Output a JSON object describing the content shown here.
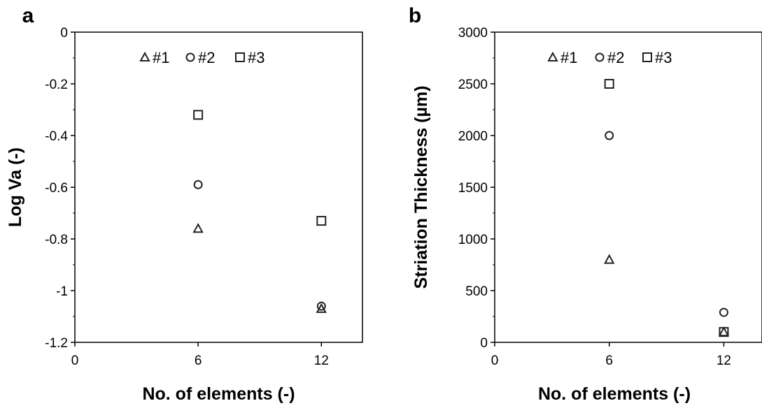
{
  "chart_data": [
    {
      "panel_label": "a",
      "type": "scatter",
      "xlabel": "No. of elements (-)",
      "ylabel": "Log Va (-)",
      "xlim": [
        0,
        14
      ],
      "ylim": [
        -1.2,
        0
      ],
      "x_ticks": [
        0,
        6,
        12
      ],
      "y_ticks": [
        0,
        -0.2,
        -0.4,
        -0.6,
        -0.8,
        -1,
        -1.2
      ],
      "grid": false,
      "legend_position": "top",
      "series": [
        {
          "name": "#1",
          "marker": "triangle",
          "x": [
            6,
            12
          ],
          "y": [
            -0.76,
            -1.07
          ]
        },
        {
          "name": "#2",
          "marker": "circle",
          "x": [
            6,
            12
          ],
          "y": [
            -0.59,
            -1.06
          ]
        },
        {
          "name": "#3",
          "marker": "square",
          "x": [
            6,
            12
          ],
          "y": [
            -0.32,
            -0.73
          ]
        }
      ]
    },
    {
      "panel_label": "b",
      "type": "scatter",
      "xlabel": "No. of elements (-)",
      "ylabel": "Striation Thickness (µm)",
      "xlim": [
        0,
        14
      ],
      "ylim": [
        0,
        3000
      ],
      "x_ticks": [
        0,
        6,
        12
      ],
      "y_ticks": [
        0,
        500,
        1000,
        1500,
        2000,
        2500,
        3000
      ],
      "grid": false,
      "legend_position": "top",
      "series": [
        {
          "name": "#1",
          "marker": "triangle",
          "x": [
            6,
            12
          ],
          "y": [
            800,
            100
          ]
        },
        {
          "name": "#2",
          "marker": "circle",
          "x": [
            6,
            12
          ],
          "y": [
            2000,
            290
          ]
        },
        {
          "name": "#3",
          "marker": "square",
          "x": [
            6,
            12
          ],
          "y": [
            2500,
            100
          ]
        }
      ]
    }
  ]
}
